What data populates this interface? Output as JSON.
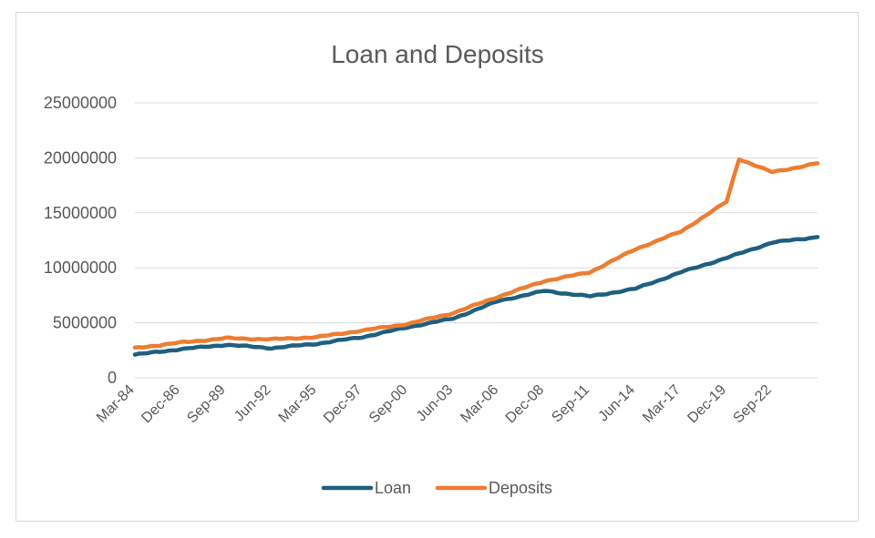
{
  "chart_data": {
    "type": "line",
    "title": "Loan and Deposits",
    "xlabel": "",
    "ylabel": "",
    "ylim": [
      0,
      25000000
    ],
    "yticks": [
      "0",
      "5000000",
      "10000000",
      "15000000",
      "20000000",
      "25000000"
    ],
    "xtick_labels": [
      "Mar-84",
      "Dec-86",
      "Sep-89",
      "Jun-92",
      "Mar-95",
      "Dec-97",
      "Sep-00",
      "Jun-03",
      "Mar-06",
      "Dec-08",
      "Sep-11",
      "Jun-14",
      "Mar-17",
      "Dec-19",
      "Sep-22"
    ],
    "legend_position": "bottom",
    "grid": true,
    "series": [
      {
        "name": "Loan",
        "color": "#1f5f7f",
        "points": [
          [
            "Mar-84",
            2100000
          ],
          [
            "Dec-86",
            2600000
          ],
          [
            "Sep-89",
            3000000
          ],
          [
            "Jun-92",
            2700000
          ],
          [
            "Mar-95",
            3100000
          ],
          [
            "Dec-97",
            3700000
          ],
          [
            "Sep-00",
            4600000
          ],
          [
            "Jun-03",
            5400000
          ],
          [
            "Mar-06",
            7000000
          ],
          [
            "Dec-08",
            7900000
          ],
          [
            "Sep-11",
            7400000
          ],
          [
            "Jun-14",
            8100000
          ],
          [
            "Mar-17",
            9600000
          ],
          [
            "Dec-19",
            10900000
          ],
          [
            "Sep-22",
            12300000
          ],
          [
            "Jun-25",
            12800000
          ]
        ]
      },
      {
        "name": "Deposits",
        "color": "#ed7d31",
        "points": [
          [
            "Mar-84",
            2700000
          ],
          [
            "Dec-86",
            3200000
          ],
          [
            "Sep-89",
            3600000
          ],
          [
            "Jun-92",
            3500000
          ],
          [
            "Mar-95",
            3700000
          ],
          [
            "Dec-97",
            4300000
          ],
          [
            "Sep-00",
            4900000
          ],
          [
            "Jun-03",
            5900000
          ],
          [
            "Mar-06",
            7400000
          ],
          [
            "Dec-08",
            8800000
          ],
          [
            "Sep-11",
            9600000
          ],
          [
            "Jun-14",
            11700000
          ],
          [
            "Mar-17",
            13300000
          ],
          [
            "Dec-19",
            16000000
          ],
          [
            "Sep-20",
            19900000
          ],
          [
            "Sep-22",
            18700000
          ],
          [
            "Jun-25",
            19500000
          ]
        ]
      }
    ]
  }
}
